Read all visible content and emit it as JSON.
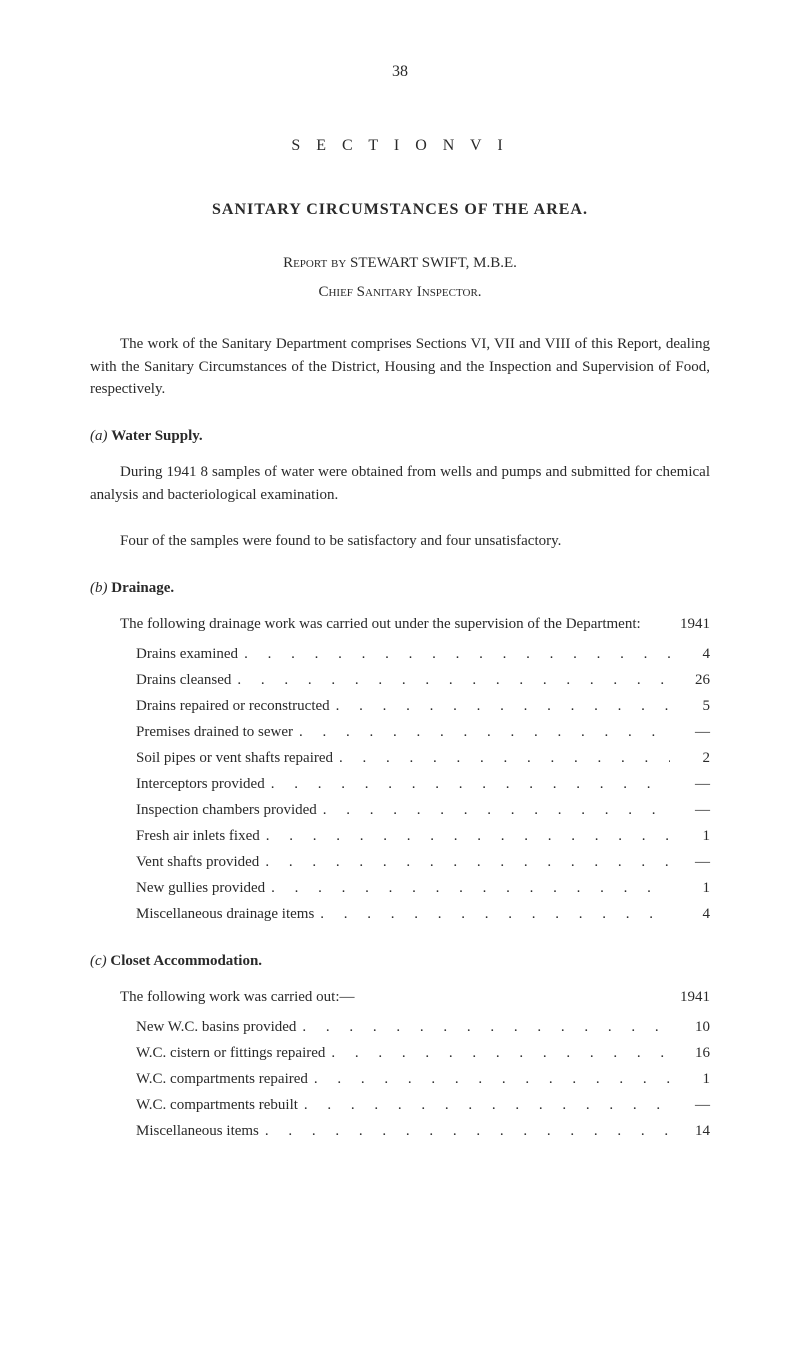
{
  "page_number": "38",
  "section_title": "S E C T I O N   V I",
  "main_heading": "SANITARY CIRCUMSTANCES OF THE AREA.",
  "report_by_prefix": "Report by",
  "report_by_name": "STEWART   SWIFT,   M.B.E.",
  "chief": "Chief Sanitary Inspector.",
  "intro_para": "The work of the Sanitary Department comprises Sections VI, VII and VIII of this Report, dealing with the Sanitary Circumstances of the District, Housing and the Inspection and Supervision of Food, respec­tively.",
  "a": {
    "label": "(a)",
    "title": "Water Supply.",
    "p1": "During 1941 8 samples of water were obtained from wells and pumps and submitted for chemical analysis and bacteriological examination.",
    "p2": "Four of the samples were found to be satisfactory and four un­satisfactory."
  },
  "b": {
    "label": "(b)",
    "title": "Drainage.",
    "lead_text": "The following drainage work was carried out under the supervision of the Department:",
    "year": "1941",
    "items": [
      {
        "label": "Drains examined",
        "value": "4"
      },
      {
        "label": "Drains cleansed",
        "value": "26"
      },
      {
        "label": "Drains repaired or reconstructed",
        "value": "5"
      },
      {
        "label": "Premises drained to sewer",
        "value": "—"
      },
      {
        "label": "Soil pipes or vent shafts repaired",
        "value": "2"
      },
      {
        "label": "Interceptors provided",
        "value": "—"
      },
      {
        "label": "Inspection chambers provided",
        "value": "—"
      },
      {
        "label": "Fresh air inlets fixed",
        "value": "1"
      },
      {
        "label": "Vent shafts provided",
        "value": "—"
      },
      {
        "label": "New gullies provided",
        "value": "1"
      },
      {
        "label": "Miscellaneous drainage items",
        "value": "4"
      }
    ]
  },
  "c": {
    "label": "(c)",
    "title": "Closet Accommodation.",
    "lead_text": "The following work was carried out:—",
    "year": "1941",
    "items": [
      {
        "label": "New W.C. basins provided",
        "value": "10"
      },
      {
        "label": "W.C. cistern or fittings repaired",
        "value": "16"
      },
      {
        "label": "W.C. compartments repaired",
        "value": "1"
      },
      {
        "label": "W.C. compartments rebuilt",
        "value": "—"
      },
      {
        "label": "Miscellaneous items",
        "value": "14"
      }
    ]
  },
  "dots_fill": ". . . . . . . . . . . . . . . . . . . . . . . . . . . . . . . . . . . . . . . ."
}
